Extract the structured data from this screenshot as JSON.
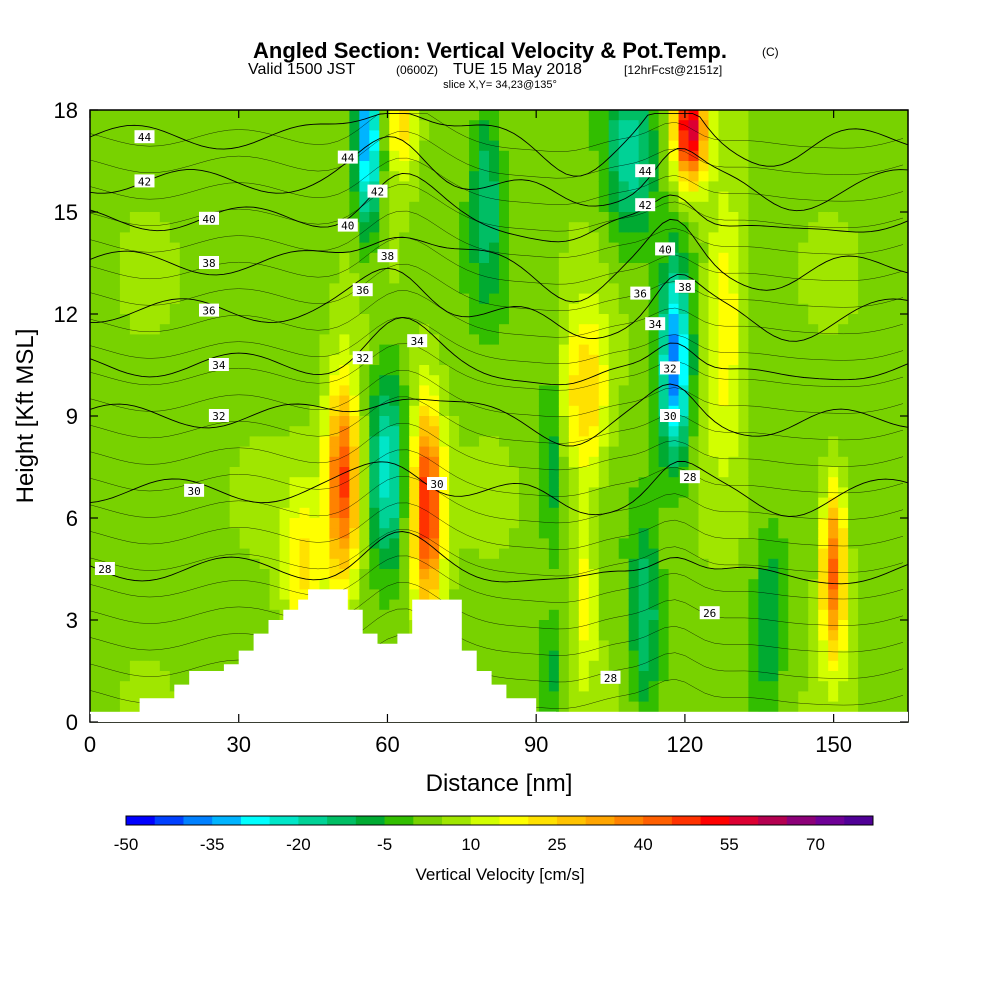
{
  "chart_data": {
    "type": "contour",
    "title": "Angled Section: Vertical Velocity & Pot.Temp.",
    "title_suffix": "(C)",
    "subtitle_a": "Valid 1500 JST",
    "subtitle_b": "(0600Z)",
    "subtitle_c": "TUE 15 May 2018",
    "subtitle_d": "[12hrFcst@2151z]",
    "slice_label": "slice X,Y= 34,23@135°",
    "xlabel": "Distance [nm]",
    "ylabel": "Height [Kft MSL]",
    "xlim": [
      0,
      165
    ],
    "ylim": [
      0,
      18
    ],
    "x_ticks": [
      "0",
      "30",
      "60",
      "90",
      "120",
      "150"
    ],
    "x_tick_values": [
      0,
      30,
      60,
      90,
      120,
      150
    ],
    "y_ticks": [
      "0",
      "3",
      "6",
      "9",
      "12",
      "15",
      "18"
    ],
    "y_tick_values": [
      0,
      3,
      6,
      9,
      12,
      15,
      18
    ],
    "colorbar": {
      "label": "Vertical Velocity [cm/s]",
      "min": -50,
      "max": 80,
      "step": 5,
      "tick_labels": [
        "-50",
        "-35",
        "-20",
        "-5",
        "10",
        "25",
        "40",
        "55",
        "70"
      ],
      "tick_values": [
        -50,
        -35,
        -20,
        -5,
        10,
        25,
        40,
        55,
        70
      ],
      "colors": [
        "#0000ff",
        "#0040ff",
        "#0080ff",
        "#00b4ff",
        "#00ffff",
        "#00e6c8",
        "#00d296",
        "#00be64",
        "#00aa32",
        "#32be00",
        "#78d200",
        "#a0e600",
        "#d2ff00",
        "#ffff00",
        "#ffe100",
        "#ffc300",
        "#ffa500",
        "#ff8200",
        "#ff5f00",
        "#ff3200",
        "#ff0000",
        "#dc0032",
        "#b40050",
        "#8c0078",
        "#6e0096",
        "#500096"
      ]
    },
    "terrain_profile": [
      {
        "x": 0,
        "h": 0
      },
      {
        "x": 10,
        "h": 0.7
      },
      {
        "x": 17,
        "h": 1.1
      },
      {
        "x": 20,
        "h": 1.5
      },
      {
        "x": 27,
        "h": 1.7
      },
      {
        "x": 30,
        "h": 2.1
      },
      {
        "x": 33,
        "h": 2.6
      },
      {
        "x": 36,
        "h": 3.0
      },
      {
        "x": 39,
        "h": 3.3
      },
      {
        "x": 42,
        "h": 3.6
      },
      {
        "x": 44,
        "h": 3.9
      },
      {
        "x": 48,
        "h": 3.9
      },
      {
        "x": 52,
        "h": 3.3
      },
      {
        "x": 55,
        "h": 2.6
      },
      {
        "x": 58,
        "h": 2.3
      },
      {
        "x": 62,
        "h": 2.6
      },
      {
        "x": 65,
        "h": 3.6
      },
      {
        "x": 71,
        "h": 3.6
      },
      {
        "x": 75,
        "h": 2.1
      },
      {
        "x": 78,
        "h": 1.5
      },
      {
        "x": 81,
        "h": 1.1
      },
      {
        "x": 84,
        "h": 0.7
      },
      {
        "x": 90,
        "h": 0.3
      },
      {
        "x": 94,
        "h": 0
      },
      {
        "x": 165,
        "h": 0
      }
    ],
    "velocity_features": [
      {
        "x": 51,
        "y": 7.0,
        "sx": 3.5,
        "sy": 3.0,
        "v": 45
      },
      {
        "x": 68,
        "y": 6.3,
        "sx": 3.2,
        "sy": 3.0,
        "v": 48
      },
      {
        "x": 150,
        "y": 4.5,
        "sx": 2.6,
        "sy": 2.6,
        "v": 40
      },
      {
        "x": 121,
        "y": 17.4,
        "sx": 3.2,
        "sy": 1.6,
        "v": 55
      },
      {
        "x": 100,
        "y": 9.6,
        "sx": 5,
        "sy": 2.5,
        "v": 22
      },
      {
        "x": 128,
        "y": 12,
        "sx": 4,
        "sy": 4,
        "v": 18
      },
      {
        "x": 63,
        "y": 17.5,
        "sx": 3,
        "sy": 1.5,
        "v": 20
      },
      {
        "x": 43,
        "y": 4.5,
        "sx": 4,
        "sy": 2.5,
        "v": 18
      },
      {
        "x": 100,
        "y": 4,
        "sx": 2.2,
        "sy": 3,
        "v": 15
      },
      {
        "x": 56,
        "y": 17,
        "sx": 2.5,
        "sy": 2.5,
        "v": -38
      },
      {
        "x": 60,
        "y": 7.5,
        "sx": 3.5,
        "sy": 2.8,
        "v": -24
      },
      {
        "x": 118,
        "y": 10.5,
        "sx": 3,
        "sy": 2.8,
        "v": -42
      },
      {
        "x": 109,
        "y": 16.5,
        "sx": 5,
        "sy": 2.5,
        "v": -22
      },
      {
        "x": 80,
        "y": 15.5,
        "sx": 3,
        "sy": 3,
        "v": -16
      },
      {
        "x": 93,
        "y": 8,
        "sx": 2,
        "sy": 2.8,
        "v": -12
      },
      {
        "x": 112,
        "y": 3,
        "sx": 3,
        "sy": 2.8,
        "v": -18
      },
      {
        "x": 137,
        "y": 3,
        "sx": 3,
        "sy": 2.5,
        "v": -14
      },
      {
        "x": 93,
        "y": 1.5,
        "sx": 2.5,
        "sy": 1.5,
        "v": -10
      }
    ],
    "theta_levels": [
      28,
      30,
      32,
      34,
      36,
      38,
      40,
      42,
      44
    ],
    "theta_labels": [
      {
        "text": "44",
        "x": 11,
        "y": 17.2
      },
      {
        "text": "42",
        "x": 11,
        "y": 15.9
      },
      {
        "text": "40",
        "x": 24,
        "y": 14.8
      },
      {
        "text": "38",
        "x": 24,
        "y": 13.5
      },
      {
        "text": "36",
        "x": 24,
        "y": 12.1
      },
      {
        "text": "34",
        "x": 26,
        "y": 10.5
      },
      {
        "text": "32",
        "x": 26,
        "y": 9.0
      },
      {
        "text": "30",
        "x": 21,
        "y": 6.8
      },
      {
        "text": "28",
        "x": 3,
        "y": 4.5
      },
      {
        "text": "44",
        "x": 52,
        "y": 16.6
      },
      {
        "text": "42",
        "x": 58,
        "y": 15.6
      },
      {
        "text": "40",
        "x": 52,
        "y": 14.6
      },
      {
        "text": "38",
        "x": 60,
        "y": 13.7
      },
      {
        "text": "36",
        "x": 55,
        "y": 12.7
      },
      {
        "text": "32",
        "x": 55,
        "y": 10.7
      },
      {
        "text": "34",
        "x": 66,
        "y": 11.2
      },
      {
        "text": "30",
        "x": 70,
        "y": 7.0
      },
      {
        "text": "44",
        "x": 112,
        "y": 16.2
      },
      {
        "text": "42",
        "x": 112,
        "y": 15.2
      },
      {
        "text": "40",
        "x": 116,
        "y": 13.9
      },
      {
        "text": "38",
        "x": 120,
        "y": 12.8
      },
      {
        "text": "36",
        "x": 111,
        "y": 12.6
      },
      {
        "text": "34",
        "x": 114,
        "y": 11.7
      },
      {
        "text": "32",
        "x": 117,
        "y": 10.4
      },
      {
        "text": "30",
        "x": 117,
        "y": 9.0
      },
      {
        "text": "28",
        "x": 121,
        "y": 7.2
      },
      {
        "text": "26",
        "x": 125,
        "y": 3.2
      },
      {
        "text": "28",
        "x": 105,
        "y": 1.3
      }
    ]
  }
}
